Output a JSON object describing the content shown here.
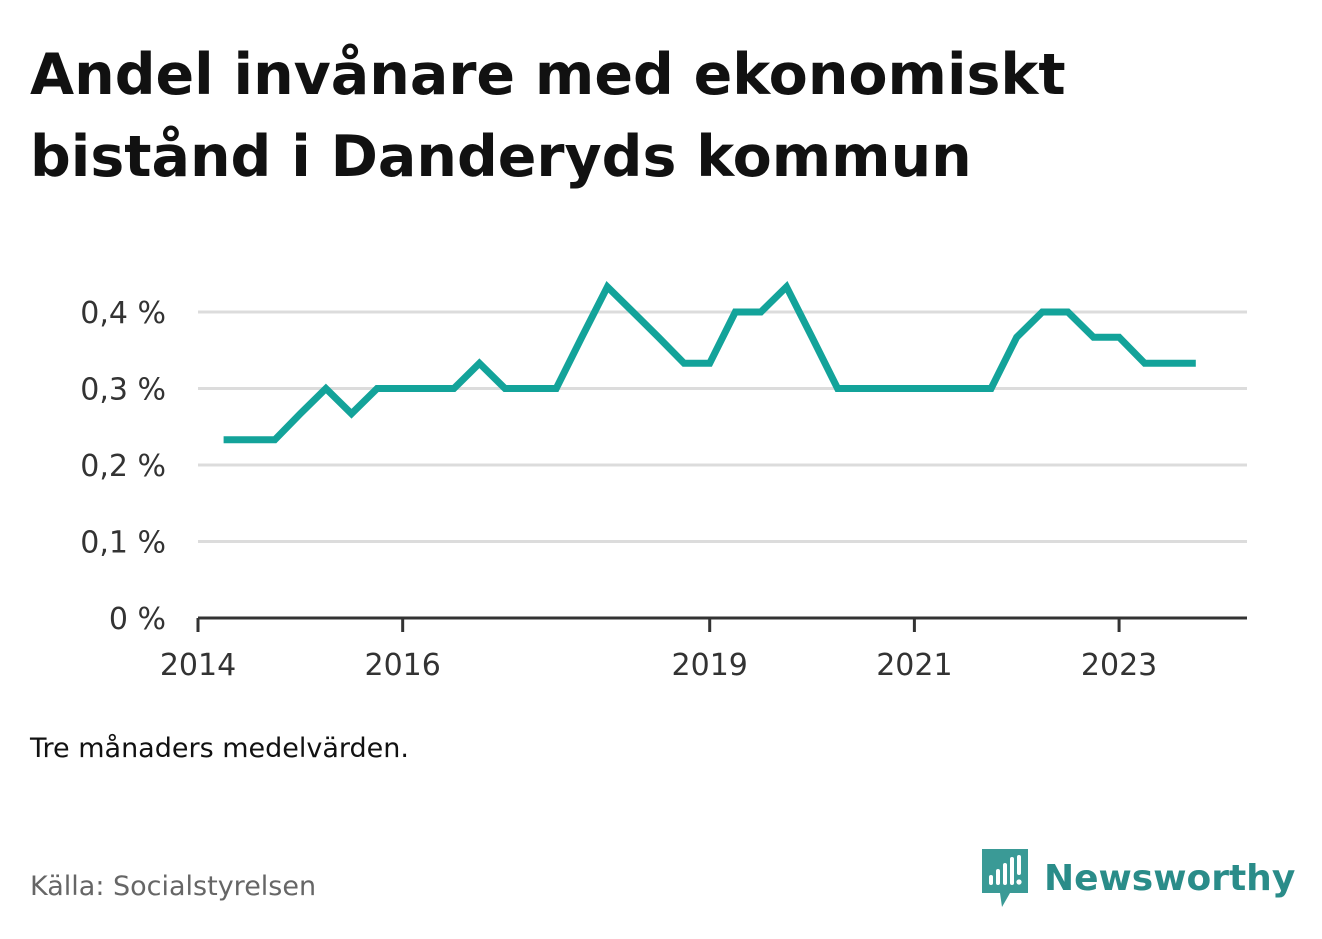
{
  "title_line1": "Andel invånare med ekonomiskt",
  "title_line2": "bistånd i Danderyds kommun",
  "note": "Tre månaders medelvärden.",
  "source": "Källa: Socialstyrelsen",
  "brand": {
    "name": "Newsworthy",
    "icon": "newsworthy-logo-icon",
    "color": "#3a9a96"
  },
  "chart_data": {
    "type": "line",
    "title": "Andel invånare med ekonomiskt bistånd i Danderyds kommun",
    "xlabel": "",
    "ylabel": "",
    "line_color": "#13a39a",
    "grid": true,
    "ylim": [
      0,
      0.4
    ],
    "xlim": [
      "2014-01",
      "2024-04"
    ],
    "yticks": [
      {
        "value": 0,
        "label": "0 %"
      },
      {
        "value": 0.1,
        "label": "0,1 %"
      },
      {
        "value": 0.2,
        "label": "0,2 %"
      },
      {
        "value": 0.3,
        "label": "0,3 %"
      },
      {
        "value": 0.4,
        "label": "0,4 %"
      }
    ],
    "xticks": [
      {
        "value": "2014-01",
        "label": "2014"
      },
      {
        "value": "2016-01",
        "label": "2016"
      },
      {
        "value": "2019-01",
        "label": "2019"
      },
      {
        "value": "2021-01",
        "label": "2021"
      },
      {
        "value": "2023-01",
        "label": "2023"
      }
    ],
    "series": [
      {
        "x": [
          "2014-04",
          "2014-07",
          "2014-10",
          "2015-01",
          "2015-04",
          "2015-07",
          "2015-10",
          "2016-01",
          "2016-04",
          "2016-07",
          "2016-10",
          "2017-01",
          "2017-04",
          "2017-07",
          "2017-10",
          "2018-01",
          "2018-04",
          "2018-07",
          "2018-10",
          "2019-01",
          "2019-04",
          "2019-07",
          "2019-10",
          "2020-01",
          "2020-04",
          "2020-07",
          "2020-10",
          "2021-01",
          "2021-04",
          "2021-07",
          "2021-10",
          "2022-01",
          "2022-04",
          "2022-07",
          "2022-10",
          "2023-01",
          "2023-04",
          "2023-07",
          "2023-10"
        ],
        "values": [
          0.233,
          0.233,
          0.233,
          0.267,
          0.3,
          0.267,
          0.3,
          0.3,
          0.3,
          0.3,
          0.333,
          0.3,
          0.3,
          0.3,
          0.367,
          0.433,
          0.4,
          0.367,
          0.333,
          0.333,
          0.4,
          0.4,
          0.433,
          0.367,
          0.3,
          0.3,
          0.3,
          0.3,
          0.3,
          0.3,
          0.3,
          0.367,
          0.4,
          0.4,
          0.367,
          0.367,
          0.333,
          0.333,
          0.333
        ]
      }
    ]
  }
}
